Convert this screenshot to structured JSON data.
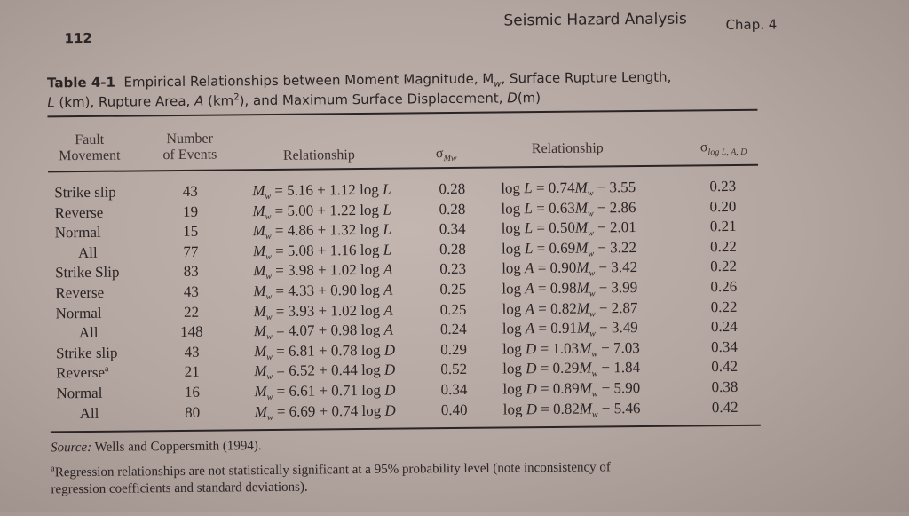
{
  "page_number": "112",
  "running_header": "Seismic Hazard Analysis",
  "chapter": "Chap. 4",
  "caption": {
    "label": "Table 4-1",
    "line1": "Empirical Relationships between Moment Magnitude, M",
    "line1_sub": "w",
    "line1_rest": ", Surface Rupture Length,",
    "line2_L": "L",
    "line2_a": " (km), Rupture Area, ",
    "line2_A": "A",
    "line2_b": " (km",
    "line2_sup": "2",
    "line2_c": "), and Maximum Surface Displacement, ",
    "line2_D": "D",
    "line2_d": "(m)"
  },
  "table": {
    "headers": {
      "fault_1": "Fault",
      "fault_2": "Movement",
      "num_1": "Number",
      "num_2": "of Events",
      "rel1": "Relationship",
      "sig1": "σ",
      "sig1_sub": "Mw",
      "rel2": "Relationship",
      "sig2": "σ",
      "sig2_sub": "log L, A, D"
    },
    "rows": [
      {
        "fault": "Strike slip",
        "indent": false,
        "events": "43",
        "a": "5.16",
        "b": "1.12",
        "var": "L",
        "sigma_mw": "0.28",
        "c": "0.74",
        "d": "3.55",
        "sigma_log": "0.23"
      },
      {
        "fault": "Reverse",
        "indent": false,
        "events": "19",
        "a": "5.00",
        "b": "1.22",
        "var": "L",
        "sigma_mw": "0.28",
        "c": "0.63",
        "d": "2.86",
        "sigma_log": "0.20"
      },
      {
        "fault": "Normal",
        "indent": false,
        "events": "15",
        "a": "4.86",
        "b": "1.32",
        "var": "L",
        "sigma_mw": "0.34",
        "c": "0.50",
        "d": "2.01",
        "sigma_log": "0.21"
      },
      {
        "fault": "All",
        "indent": true,
        "events": "77",
        "a": "5.08",
        "b": "1.16",
        "var": "L",
        "sigma_mw": "0.28",
        "c": "0.69",
        "d": "3.22",
        "sigma_log": "0.22"
      },
      {
        "fault": "Strike Slip",
        "indent": false,
        "events": "83",
        "a": "3.98",
        "b": "1.02",
        "var": "A",
        "sigma_mw": "0.23",
        "c": "0.90",
        "d": "3.42",
        "sigma_log": "0.22"
      },
      {
        "fault": "Reverse",
        "indent": false,
        "events": "43",
        "a": "4.33",
        "b": "0.90",
        "var": "A",
        "sigma_mw": "0.25",
        "c": "0.98",
        "d": "3.99",
        "sigma_log": "0.26"
      },
      {
        "fault": "Normal",
        "indent": false,
        "events": "22",
        "a": "3.93",
        "b": "1.02",
        "var": "A",
        "sigma_mw": "0.25",
        "c": "0.82",
        "d": "2.87",
        "sigma_log": "0.22"
      },
      {
        "fault": "All",
        "indent": true,
        "events": "148",
        "a": "4.07",
        "b": "0.98",
        "var": "A",
        "sigma_mw": "0.24",
        "c": "0.91",
        "d": "3.49",
        "sigma_log": "0.24"
      },
      {
        "fault": "Strike slip",
        "indent": false,
        "events": "43",
        "a": "6.81",
        "b": "0.78",
        "var": "D",
        "sigma_mw": "0.29",
        "c": "1.03",
        "d": "7.03",
        "sigma_log": "0.34"
      },
      {
        "fault": "Reverse",
        "footnote": "a",
        "indent": false,
        "events": "21",
        "a": "6.52",
        "b": "0.44",
        "var": "D",
        "sigma_mw": "0.52",
        "c": "0.29",
        "d": "1.84",
        "sigma_log": "0.42"
      },
      {
        "fault": "Normal",
        "indent": false,
        "events": "16",
        "a": "6.61",
        "b": "0.71",
        "var": "D",
        "sigma_mw": "0.34",
        "c": "0.89",
        "d": "5.90",
        "sigma_log": "0.38"
      },
      {
        "fault": "All",
        "indent": true,
        "events": "80",
        "a": "6.69",
        "b": "0.74",
        "var": "D",
        "sigma_mw": "0.40",
        "c": "0.82",
        "d": "5.46",
        "sigma_log": "0.42"
      }
    ]
  },
  "source_label": "Source:",
  "source_text": " Wells and Coppersmith (1994).",
  "footnote_mark": "a",
  "footnote_line1": "Regression relationships are not statistically significant at a 95% probability level (note inconsistency of",
  "footnote_line2": "regression coefficients and standard deviations)."
}
